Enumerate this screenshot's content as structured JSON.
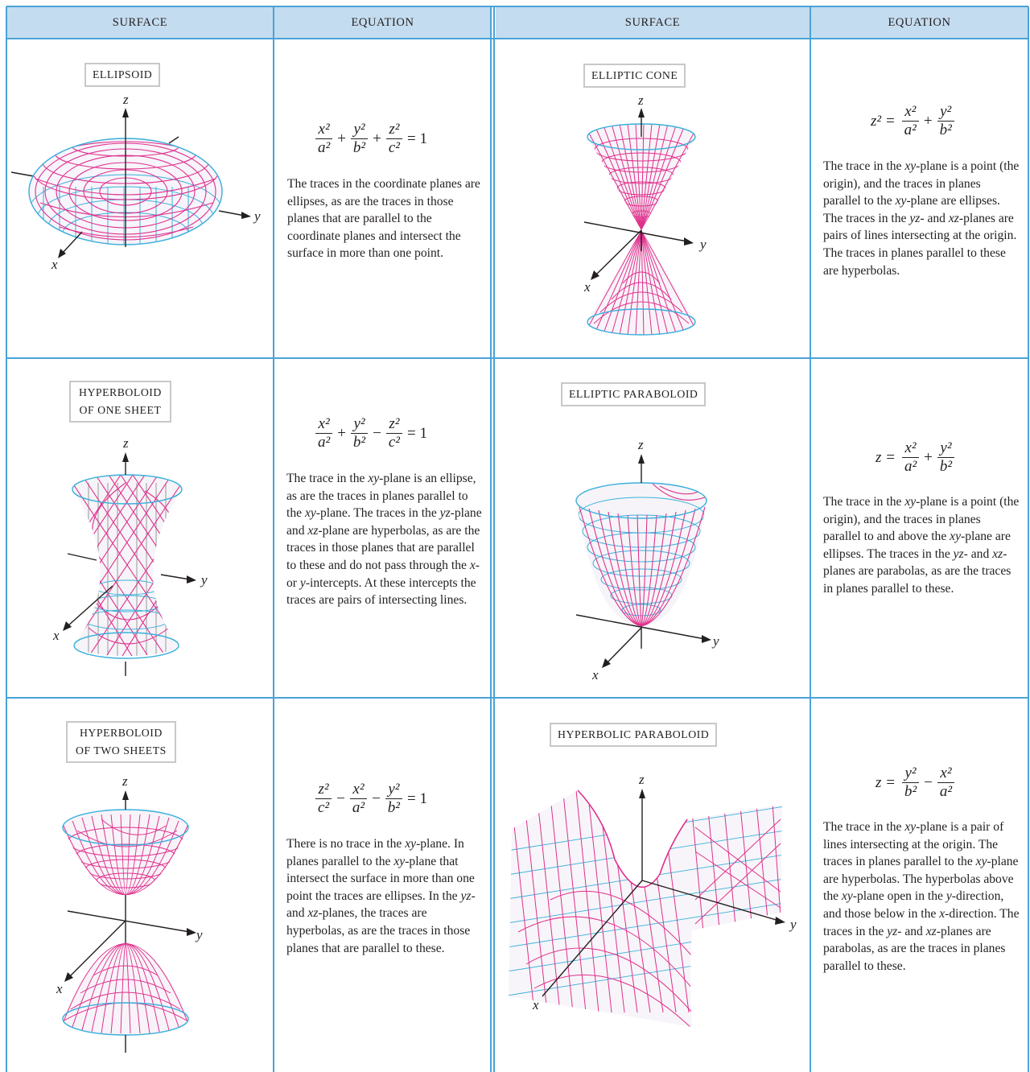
{
  "header": {
    "col1": "SURFACE",
    "col2": "EQUATION",
    "col3": "SURFACE",
    "col4": "EQUATION"
  },
  "axis_labels": {
    "x": "x",
    "y": "y",
    "z": "z"
  },
  "colors": {
    "rule": "#4aa3d8",
    "header_fill": "#c4dcef",
    "mesh_magenta": "#e0308c",
    "mesh_cyan": "#3ab0dc"
  },
  "surfaces": {
    "ellipsoid": {
      "name": "ELLIPSOID",
      "equation": {
        "t1_num": "x²",
        "t1_den": "a²",
        "op1": "+",
        "t2_num": "y²",
        "t2_den": "b²",
        "op2": "+",
        "t3_num": "z²",
        "t3_den": "c²",
        "rhs": "= 1"
      },
      "description": "The traces in the coordinate planes are ellipses, as are the traces in those planes that are parallel to the coordinate planes and intersect the surface in more than one point."
    },
    "elliptic_cone": {
      "name": "ELLIPTIC CONE",
      "equation": {
        "lhs": "z² =",
        "t1_num": "x²",
        "t1_den": "a²",
        "op1": "+",
        "t2_num": "y²",
        "t2_den": "b²"
      },
      "description": "The trace in the xy-plane is a point (the origin), and the traces in planes parallel to the xy-plane are ellipses.  The traces in the yz- and xz-planes are pairs of lines intersecting at the origin. The traces in planes parallel to these are hyperbolas."
    },
    "hyperboloid_one_sheet": {
      "name_line1": "HYPERBOLOID",
      "name_line2": "OF ONE SHEET",
      "equation": {
        "t1_num": "x²",
        "t1_den": "a²",
        "op1": "+",
        "t2_num": "y²",
        "t2_den": "b²",
        "op2": "−",
        "t3_num": "z²",
        "t3_den": "c²",
        "rhs": "= 1"
      },
      "description": "The trace in the xy-plane is an ellipse, as are the traces in planes parallel to the xy-plane. The traces in the yz-plane and xz-plane are hyperbolas, as are the traces in those planes that are parallel to these and do not pass through the x- or y-intercepts. At these intercepts the traces are pairs of intersecting lines."
    },
    "elliptic_paraboloid": {
      "name": "ELLIPTIC PARABOLOID",
      "equation": {
        "lhs": "z =",
        "t1_num": "x²",
        "t1_den": "a²",
        "op1": "+",
        "t2_num": "y²",
        "t2_den": "b²"
      },
      "description": "The trace in the xy-plane is a point (the origin), and the traces in planes parallel to and above the xy-plane are ellipses. The traces in the yz- and xz-planes are parabolas, as are the traces in planes parallel to these."
    },
    "hyperboloid_two_sheets": {
      "name_line1": "HYPERBOLOID",
      "name_line2": "OF TWO SHEETS",
      "equation": {
        "t1_num": "z²",
        "t1_den": "c²",
        "op1": "−",
        "t2_num": "x²",
        "t2_den": "a²",
        "op2": "−",
        "t3_num": "y²",
        "t3_den": "b²",
        "rhs": "= 1"
      },
      "description": "There is no trace in the xy-plane. In planes parallel to the xy-plane that intersect the surface in more than one point the traces are ellipses. In the yz- and xz-planes, the traces are hyperbolas, as are the traces in those planes that are parallel to these."
    },
    "hyperbolic_paraboloid": {
      "name": "HYPERBOLIC PARABOLOID",
      "equation": {
        "lhs": "z =",
        "t1_num": "y²",
        "t1_den": "b²",
        "op1": "−",
        "t2_num": "x²",
        "t2_den": "a²"
      },
      "description": "The trace in the xy-plane is a pair of lines intersecting at the origin. The traces in planes parallel to the xy-plane are hyperbolas. The hyperbolas above the xy-plane open in the y-direction, and those below in the x-direction. The traces in the yz- and xz-planes are parabolas, as are the traces in planes parallel to these."
    }
  }
}
